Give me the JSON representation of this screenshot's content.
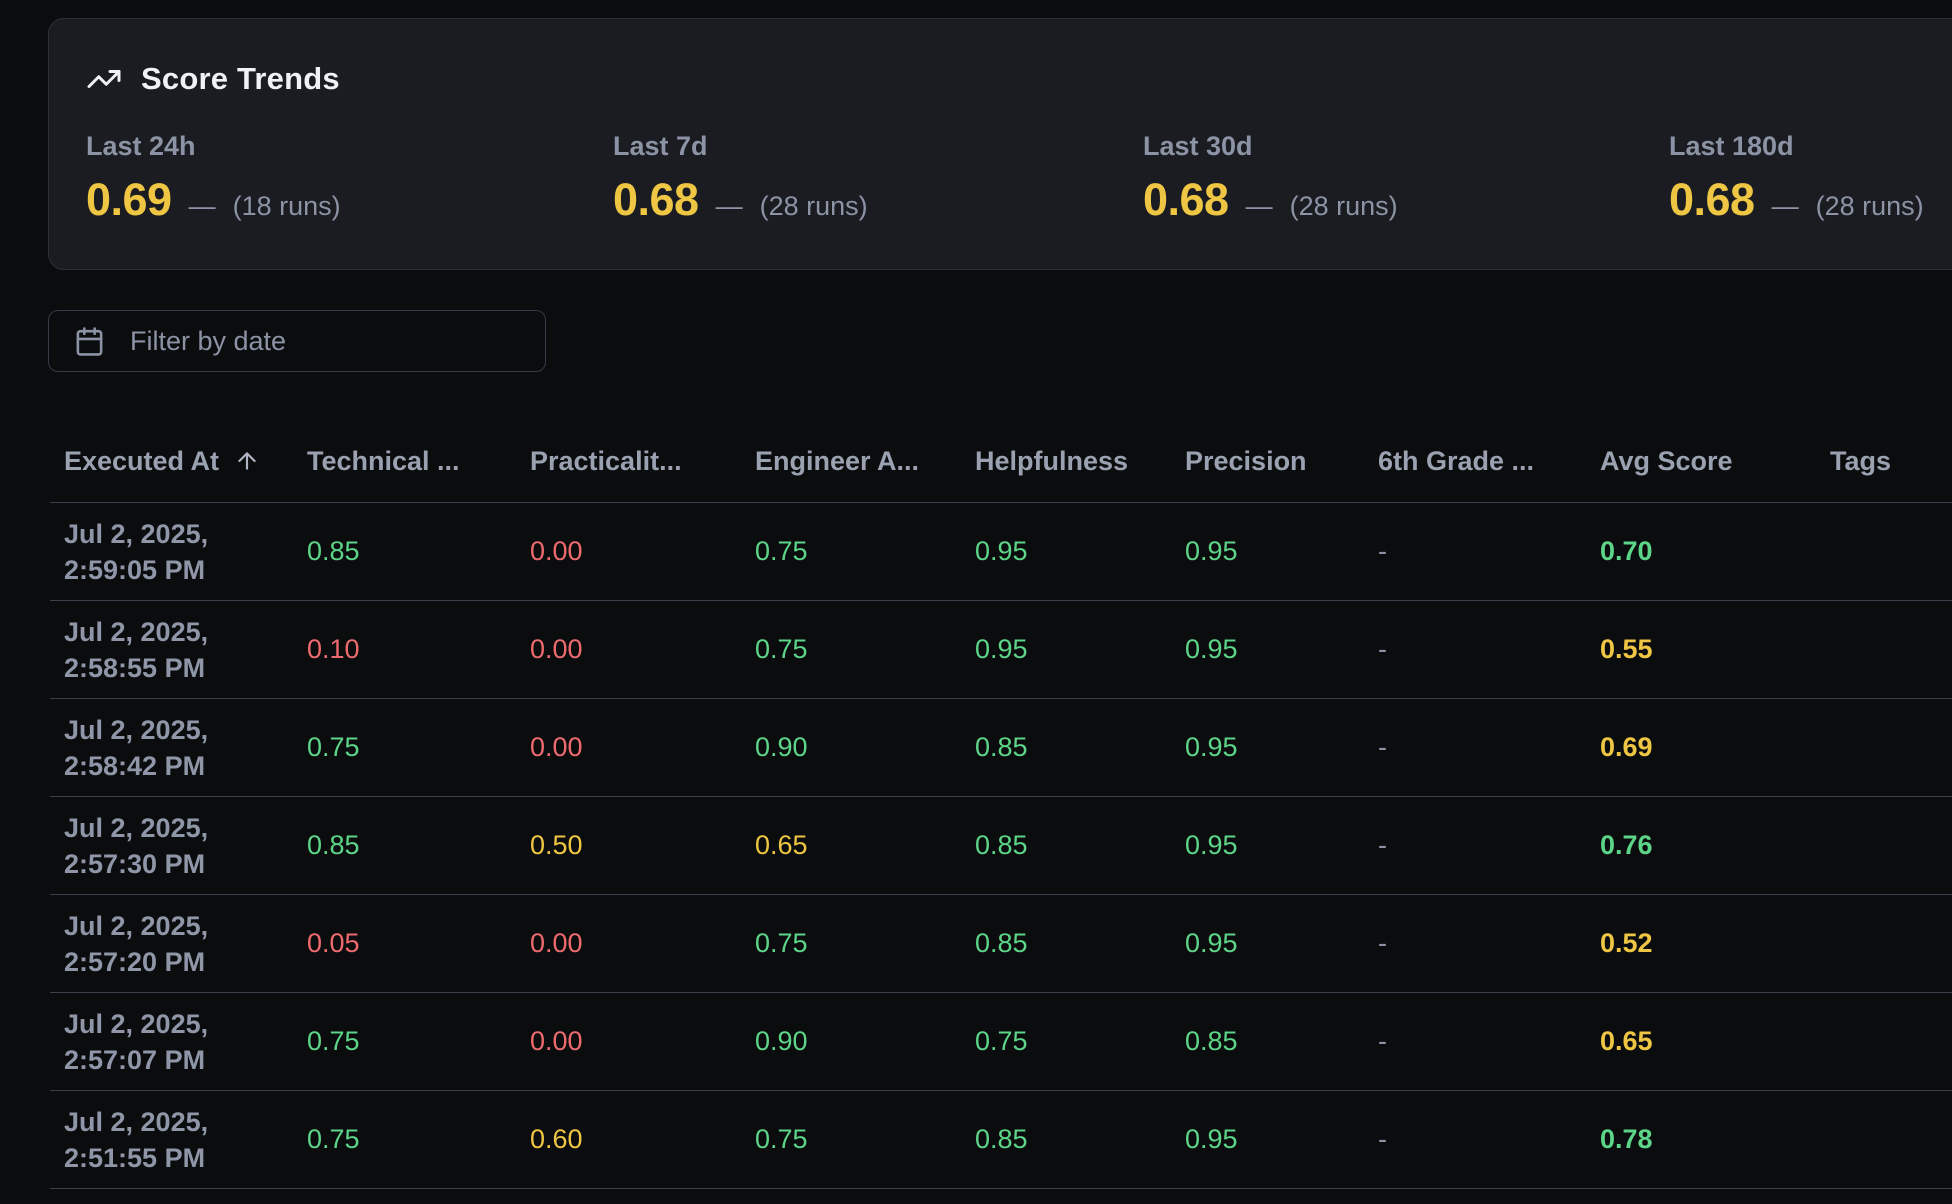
{
  "score_trends": {
    "title": "Score Trends",
    "stats": [
      {
        "label": "Last 24h",
        "value": "0.69",
        "dash": "—",
        "runs": "(18 runs)"
      },
      {
        "label": "Last 7d",
        "value": "0.68",
        "dash": "—",
        "runs": "(28 runs)"
      },
      {
        "label": "Last 30d",
        "value": "0.68",
        "dash": "—",
        "runs": "(28 runs)"
      },
      {
        "label": "Last 180d",
        "value": "0.68",
        "dash": "—",
        "runs": "(28 runs)"
      }
    ]
  },
  "filter": {
    "label": "Filter by date",
    "icon": "calendar-icon"
  },
  "table": {
    "columns": [
      {
        "id": "executed_at",
        "label": "Executed At",
        "sort": "asc",
        "sort_icon": "arrow-up-icon"
      },
      {
        "id": "technical",
        "label": "Technical ..."
      },
      {
        "id": "practicality",
        "label": "Practicalit..."
      },
      {
        "id": "engineer",
        "label": "Engineer A..."
      },
      {
        "id": "helpfulness",
        "label": "Helpfulness"
      },
      {
        "id": "precision",
        "label": "Precision"
      },
      {
        "id": "sixth_grade",
        "label": "6th Grade ..."
      },
      {
        "id": "avg_score",
        "label": "Avg Score"
      },
      {
        "id": "tags",
        "label": "Tags"
      }
    ],
    "rows": [
      {
        "date": [
          "Jul 2, 2025,",
          "2:59:05 PM"
        ],
        "scores": [
          {
            "v": "0.85",
            "c": "green"
          },
          {
            "v": "0.00",
            "c": "red"
          },
          {
            "v": "0.75",
            "c": "green"
          },
          {
            "v": "0.95",
            "c": "green"
          },
          {
            "v": "0.95",
            "c": "green"
          },
          {
            "v": "-",
            "c": "muted"
          }
        ],
        "avg": {
          "v": "0.70",
          "c": "green"
        },
        "tags": ""
      },
      {
        "date": [
          "Jul 2, 2025,",
          "2:58:55 PM"
        ],
        "scores": [
          {
            "v": "0.10",
            "c": "red"
          },
          {
            "v": "0.00",
            "c": "red"
          },
          {
            "v": "0.75",
            "c": "green"
          },
          {
            "v": "0.95",
            "c": "green"
          },
          {
            "v": "0.95",
            "c": "green"
          },
          {
            "v": "-",
            "c": "muted"
          }
        ],
        "avg": {
          "v": "0.55",
          "c": "yellow"
        },
        "tags": ""
      },
      {
        "date": [
          "Jul 2, 2025,",
          "2:58:42 PM"
        ],
        "scores": [
          {
            "v": "0.75",
            "c": "green"
          },
          {
            "v": "0.00",
            "c": "red"
          },
          {
            "v": "0.90",
            "c": "green"
          },
          {
            "v": "0.85",
            "c": "green"
          },
          {
            "v": "0.95",
            "c": "green"
          },
          {
            "v": "-",
            "c": "muted"
          }
        ],
        "avg": {
          "v": "0.69",
          "c": "yellow"
        },
        "tags": ""
      },
      {
        "date": [
          "Jul 2, 2025,",
          "2:57:30 PM"
        ],
        "scores": [
          {
            "v": "0.85",
            "c": "green"
          },
          {
            "v": "0.50",
            "c": "yellow"
          },
          {
            "v": "0.65",
            "c": "yellow"
          },
          {
            "v": "0.85",
            "c": "green"
          },
          {
            "v": "0.95",
            "c": "green"
          },
          {
            "v": "-",
            "c": "muted"
          }
        ],
        "avg": {
          "v": "0.76",
          "c": "green"
        },
        "tags": ""
      },
      {
        "date": [
          "Jul 2, 2025,",
          "2:57:20 PM"
        ],
        "scores": [
          {
            "v": "0.05",
            "c": "red"
          },
          {
            "v": "0.00",
            "c": "red"
          },
          {
            "v": "0.75",
            "c": "green"
          },
          {
            "v": "0.85",
            "c": "green"
          },
          {
            "v": "0.95",
            "c": "green"
          },
          {
            "v": "-",
            "c": "muted"
          }
        ],
        "avg": {
          "v": "0.52",
          "c": "yellow"
        },
        "tags": ""
      },
      {
        "date": [
          "Jul 2, 2025,",
          "2:57:07 PM"
        ],
        "scores": [
          {
            "v": "0.75",
            "c": "green"
          },
          {
            "v": "0.00",
            "c": "red"
          },
          {
            "v": "0.90",
            "c": "green"
          },
          {
            "v": "0.75",
            "c": "green"
          },
          {
            "v": "0.85",
            "c": "green"
          },
          {
            "v": "-",
            "c": "muted"
          }
        ],
        "avg": {
          "v": "0.65",
          "c": "yellow"
        },
        "tags": ""
      },
      {
        "date": [
          "Jul 2, 2025,",
          "2:51:55 PM"
        ],
        "scores": [
          {
            "v": "0.75",
            "c": "green"
          },
          {
            "v": "0.60",
            "c": "yellow"
          },
          {
            "v": "0.75",
            "c": "green"
          },
          {
            "v": "0.85",
            "c": "green"
          },
          {
            "v": "0.95",
            "c": "green"
          },
          {
            "v": "-",
            "c": "muted"
          }
        ],
        "avg": {
          "v": "0.78",
          "c": "green"
        },
        "tags": ""
      }
    ]
  },
  "colors": {
    "page_bg": "#0b0c0e",
    "card_bg": "#1a1c21",
    "card_border": "#2c303a",
    "divider": "#3b3f4b",
    "title_text": "#eef1f5",
    "muted_text": "#8b93a4",
    "header_text": "#9aa2b1",
    "date_text": "#8e96a8",
    "score_green": "#5dd588",
    "score_red": "#ed6a6e",
    "score_yellow": "#eec643"
  }
}
